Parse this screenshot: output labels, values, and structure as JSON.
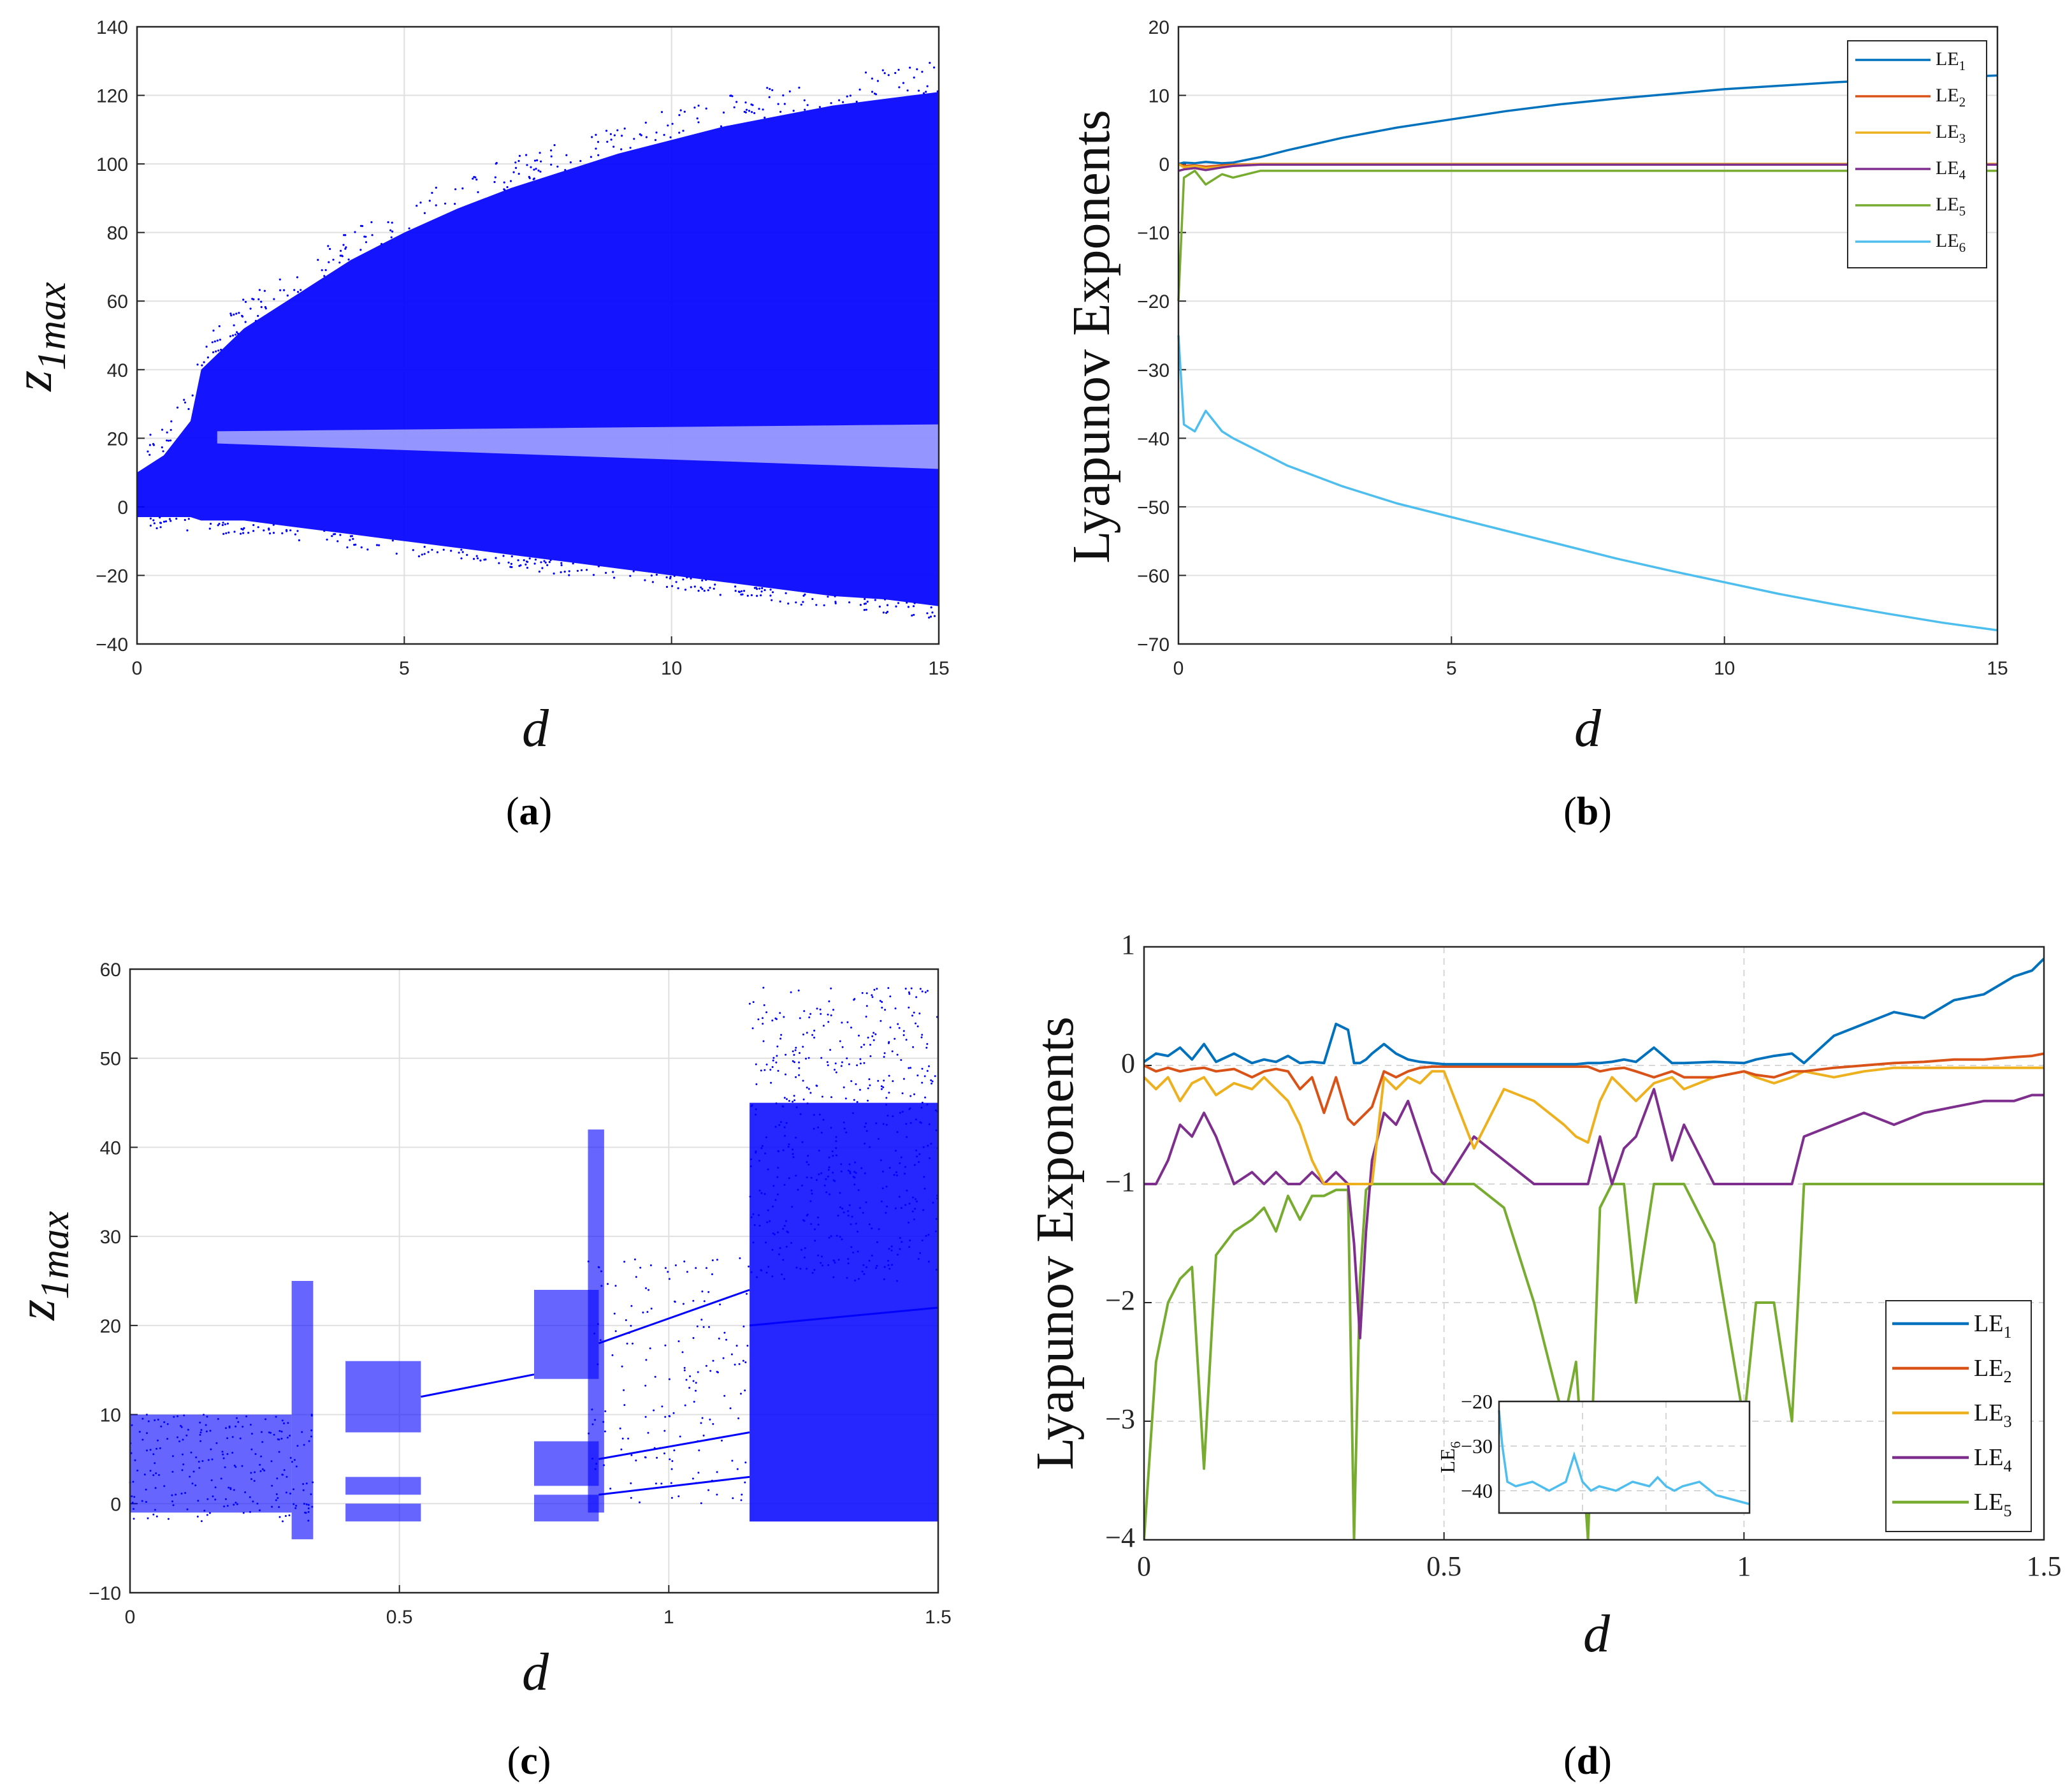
{
  "colors": {
    "scatter": "#0000ff",
    "LE1": "#0072bd",
    "LE2": "#d95319",
    "LE3": "#edb120",
    "LE4": "#7e2f8e",
    "LE5": "#77ac30",
    "LE6": "#4dbeee"
  },
  "chart_data": [
    {
      "id": "a",
      "type": "scatter",
      "panel_label": "a",
      "title": "",
      "xlabel": "d",
      "ylabel_base": "z",
      "ylabel_sub": "1max",
      "xlim": [
        0,
        15
      ],
      "ylim": [
        -40,
        140
      ],
      "xticks": [
        0,
        5,
        10,
        15
      ],
      "xtick_labels": [
        "0",
        "5",
        "10",
        "15"
      ],
      "yticks": [
        -40,
        -20,
        0,
        20,
        40,
        60,
        80,
        100,
        120,
        140
      ],
      "ytick_labels": [
        "−40",
        "−20",
        "0",
        "20",
        "40",
        "60",
        "80",
        "100",
        "120",
        "140"
      ],
      "grid": true,
      "envelope_x": [
        0,
        0.5,
        1,
        1.2,
        2,
        3,
        4,
        5,
        6,
        7,
        8,
        9,
        10,
        11,
        12,
        13,
        14,
        15
      ],
      "envelope_upper": [
        10,
        15,
        25,
        40,
        52,
        62,
        72,
        80,
        87,
        93,
        98,
        103,
        107,
        111,
        114,
        117,
        119,
        121
      ],
      "envelope_lower": [
        -3,
        -3,
        -3,
        -4,
        -4,
        -6,
        -8,
        -10,
        -12,
        -14,
        -16,
        -18,
        -20,
        -22,
        -24,
        -26,
        -27,
        -29
      ]
    },
    {
      "id": "b",
      "type": "line",
      "panel_label": "b",
      "title": "",
      "xlabel": "d",
      "ylabel": "Lyapunov Exponents",
      "xlim": [
        0,
        15
      ],
      "ylim": [
        -70,
        20
      ],
      "xticks": [
        0,
        5,
        10,
        15
      ],
      "xtick_labels": [
        "0",
        "5",
        "10",
        "15"
      ],
      "yticks": [
        -70,
        -60,
        -50,
        -40,
        -30,
        -20,
        -10,
        0,
        10,
        20
      ],
      "ytick_labels": [
        "−70",
        "−60",
        "−50",
        "−40",
        "−30",
        "−20",
        "−10",
        "0",
        "10",
        "20"
      ],
      "grid": true,
      "legend_position": "top-right",
      "x": [
        0,
        0.1,
        0.3,
        0.5,
        0.8,
        1.0,
        1.5,
        2,
        3,
        4,
        5,
        6,
        7,
        8,
        9,
        10,
        11,
        12,
        13,
        14,
        15
      ],
      "series": [
        {
          "name": "LE",
          "sub": "1",
          "color_key": "LE1",
          "values": [
            0,
            0.2,
            0.1,
            0.3,
            0.1,
            0.2,
            1.0,
            2.0,
            3.8,
            5.3,
            6.5,
            7.7,
            8.7,
            9.5,
            10.2,
            10.9,
            11.4,
            11.9,
            12.3,
            12.6,
            12.9
          ]
        },
        {
          "name": "LE",
          "sub": "2",
          "color_key": "LE2",
          "values": [
            0,
            -0.3,
            -0.2,
            -0.4,
            -0.2,
            -0.1,
            0,
            0,
            0,
            0,
            0,
            0,
            0,
            0,
            0,
            0,
            0,
            0,
            0,
            0,
            0
          ]
        },
        {
          "name": "LE",
          "sub": "3",
          "color_key": "LE3",
          "values": [
            0,
            -0.5,
            -0.3,
            -0.6,
            -0.4,
            -0.2,
            0,
            0,
            0,
            0,
            0,
            0,
            0,
            0,
            0,
            0,
            0,
            0,
            0,
            0,
            0
          ]
        },
        {
          "name": "LE",
          "sub": "4",
          "color_key": "LE4",
          "values": [
            -1,
            -0.8,
            -0.6,
            -0.9,
            -0.5,
            -0.3,
            -0.1,
            -0.1,
            -0.1,
            -0.1,
            -0.1,
            -0.1,
            -0.1,
            -0.1,
            -0.1,
            -0.1,
            -0.1,
            -0.1,
            -0.1,
            -0.1,
            -0.1
          ]
        },
        {
          "name": "LE",
          "sub": "5",
          "color_key": "LE5",
          "values": [
            -20,
            -2,
            -1,
            -3,
            -1.5,
            -2,
            -1,
            -1,
            -1,
            -1,
            -1,
            -1,
            -1,
            -1,
            -1,
            -1,
            -1,
            -1,
            -1,
            -1,
            -1
          ]
        },
        {
          "name": "LE",
          "sub": "6",
          "color_key": "LE6",
          "values": [
            -25,
            -38,
            -39,
            -36,
            -39,
            -40,
            -42,
            -44,
            -47,
            -49.5,
            -51.5,
            -53.5,
            -55.5,
            -57.5,
            -59.3,
            -61,
            -62.7,
            -64.2,
            -65.6,
            -66.9,
            -68
          ]
        }
      ]
    },
    {
      "id": "c",
      "type": "scatter",
      "panel_label": "c",
      "title": "",
      "xlabel": "d",
      "ylabel_base": "z",
      "ylabel_sub": "1max",
      "xlim": [
        0,
        1.5
      ],
      "ylim": [
        -10,
        60
      ],
      "xticks": [
        0,
        0.5,
        1,
        1.5
      ],
      "xtick_labels": [
        "0",
        "0.5",
        "1",
        "1.5"
      ],
      "yticks": [
        -10,
        0,
        10,
        20,
        30,
        40,
        50,
        60
      ],
      "ytick_labels": [
        "−10",
        "0",
        "10",
        "20",
        "30",
        "40",
        "50",
        "60"
      ],
      "grid": true,
      "bands": [
        {
          "x0": 0.0,
          "x1": 0.3,
          "y0": -1,
          "y1": 10
        },
        {
          "x0": 0.3,
          "x1": 0.34,
          "y0": -4,
          "y1": 25
        },
        {
          "x0": 0.4,
          "x1": 0.54,
          "y0": 8,
          "y1": 16
        },
        {
          "x0": 0.4,
          "x1": 0.54,
          "y0": 1,
          "y1": 3
        },
        {
          "x0": 0.4,
          "x1": 0.54,
          "y0": -2,
          "y1": 0
        },
        {
          "x0": 0.75,
          "x1": 0.87,
          "y0": 14,
          "y1": 24
        },
        {
          "x0": 0.75,
          "x1": 0.87,
          "y0": 2,
          "y1": 7
        },
        {
          "x0": 0.75,
          "x1": 0.87,
          "y0": -2,
          "y1": 1
        },
        {
          "x0": 0.85,
          "x1": 0.88,
          "y0": -1,
          "y1": 42
        },
        {
          "x0": 1.15,
          "x1": 1.5,
          "y0": -2,
          "y1": 45
        }
      ],
      "curves": [
        {
          "x": [
            0.54,
            0.75
          ],
          "y": [
            12,
            14.5
          ]
        },
        {
          "x": [
            0.87,
            1.15
          ],
          "y": [
            18,
            24
          ]
        },
        {
          "x": [
            0.87,
            1.15
          ],
          "y": [
            5,
            8
          ]
        },
        {
          "x": [
            0.87,
            1.15
          ],
          "y": [
            1,
            3
          ]
        },
        {
          "x": [
            1.15,
            1.5
          ],
          "y": [
            20,
            22
          ]
        }
      ]
    },
    {
      "id": "d",
      "type": "line",
      "panel_label": "d",
      "title": "",
      "xlabel": "d",
      "ylabel": "Lyapunov Exponents",
      "xlim": [
        0,
        1.5
      ],
      "ylim": [
        -4,
        1
      ],
      "xticks": [
        0,
        0.5,
        1,
        1.5
      ],
      "xtick_labels": [
        "0",
        "0.5",
        "1",
        "1.5"
      ],
      "yticks": [
        -4,
        -3,
        -2,
        -1,
        0,
        1
      ],
      "ytick_labels": [
        "−4",
        "−3",
        "−2",
        "−1",
        "0",
        "1"
      ],
      "grid": true,
      "legend_position": "bottom-right",
      "x": [
        0,
        0.02,
        0.04,
        0.06,
        0.08,
        0.1,
        0.12,
        0.15,
        0.18,
        0.2,
        0.22,
        0.24,
        0.26,
        0.28,
        0.3,
        0.32,
        0.34,
        0.35,
        0.36,
        0.37,
        0.38,
        0.4,
        0.42,
        0.44,
        0.46,
        0.48,
        0.5,
        0.55,
        0.6,
        0.65,
        0.7,
        0.72,
        0.74,
        0.76,
        0.78,
        0.8,
        0.82,
        0.85,
        0.88,
        0.9,
        0.95,
        1.0,
        1.02,
        1.05,
        1.08,
        1.1,
        1.15,
        1.2,
        1.25,
        1.3,
        1.35,
        1.4,
        1.45,
        1.48,
        1.5
      ],
      "series": [
        {
          "name": "LE",
          "sub": "1",
          "color_key": "LE1",
          "values": [
            0.03,
            0.1,
            0.08,
            0.15,
            0.05,
            0.18,
            0.03,
            0.1,
            0.02,
            0.05,
            0.03,
            0.08,
            0.02,
            0.03,
            0.02,
            0.35,
            0.3,
            0.02,
            0.02,
            0.05,
            0.1,
            0.18,
            0.1,
            0.05,
            0.03,
            0.02,
            0.01,
            0.01,
            0.01,
            0.01,
            0.01,
            0.01,
            0.02,
            0.02,
            0.03,
            0.05,
            0.03,
            0.15,
            0.02,
            0.02,
            0.03,
            0.02,
            0.05,
            0.08,
            0.1,
            0.02,
            0.25,
            0.35,
            0.45,
            0.4,
            0.55,
            0.6,
            0.75,
            0.8,
            0.9
          ]
        },
        {
          "name": "LE",
          "sub": "2",
          "color_key": "LE2",
          "values": [
            0,
            -0.05,
            -0.02,
            -0.05,
            -0.03,
            -0.02,
            -0.05,
            -0.03,
            -0.1,
            -0.05,
            -0.03,
            -0.05,
            -0.2,
            -0.1,
            -0.4,
            -0.1,
            -0.45,
            -0.5,
            -0.45,
            -0.4,
            -0.35,
            -0.05,
            -0.1,
            -0.05,
            -0.02,
            -0.01,
            -0.01,
            -0.01,
            -0.01,
            -0.01,
            -0.01,
            -0.01,
            -0.01,
            -0.05,
            -0.03,
            -0.02,
            -0.05,
            -0.1,
            -0.05,
            -0.1,
            -0.1,
            -0.05,
            -0.08,
            -0.1,
            -0.05,
            -0.05,
            -0.02,
            0,
            0.02,
            0.03,
            0.05,
            0.05,
            0.07,
            0.08,
            0.1
          ]
        },
        {
          "name": "LE",
          "sub": "3",
          "color_key": "LE3",
          "values": [
            -0.1,
            -0.2,
            -0.1,
            -0.3,
            -0.15,
            -0.1,
            -0.25,
            -0.15,
            -0.2,
            -0.1,
            -0.2,
            -0.3,
            -0.5,
            -0.8,
            -1,
            -1,
            -1,
            -1,
            -1,
            -1,
            -1,
            -0.1,
            -0.2,
            -0.1,
            -0.15,
            -0.05,
            -0.05,
            -0.7,
            -0.2,
            -0.3,
            -0.5,
            -0.6,
            -0.65,
            -0.3,
            -0.1,
            -0.2,
            -0.3,
            -0.15,
            -0.1,
            -0.2,
            -0.1,
            -0.05,
            -0.1,
            -0.15,
            -0.1,
            -0.05,
            -0.1,
            -0.05,
            -0.02,
            -0.02,
            -0.02,
            -0.02,
            -0.02,
            -0.02,
            -0.02
          ]
        },
        {
          "name": "LE",
          "sub": "4",
          "color_key": "LE4",
          "values": [
            -1,
            -1,
            -0.8,
            -0.5,
            -0.6,
            -0.4,
            -0.6,
            -1,
            -0.9,
            -1,
            -0.9,
            -1,
            -1,
            -0.9,
            -1,
            -0.9,
            -1,
            -1.5,
            -2.3,
            -1.4,
            -0.8,
            -0.4,
            -0.5,
            -0.3,
            -0.6,
            -0.9,
            -1,
            -0.6,
            -0.8,
            -1,
            -1,
            -1,
            -1,
            -0.6,
            -1,
            -0.7,
            -0.6,
            -0.2,
            -0.8,
            -0.5,
            -1,
            -1,
            -1,
            -1,
            -1,
            -0.6,
            -0.5,
            -0.4,
            -0.5,
            -0.4,
            -0.35,
            -0.3,
            -0.3,
            -0.25,
            -0.25
          ]
        },
        {
          "name": "LE",
          "sub": "5",
          "color_key": "LE5",
          "values": [
            -4,
            -2.5,
            -2,
            -1.8,
            -1.7,
            -3.4,
            -1.6,
            -1.4,
            -1.3,
            -1.2,
            -1.4,
            -1.1,
            -1.3,
            -1.1,
            -1.1,
            -1.05,
            -1.05,
            -4,
            -1.8,
            -1.05,
            -1,
            -1,
            -1,
            -1,
            -1,
            -1,
            -1,
            -1,
            -1.2,
            -2,
            -3,
            -2.5,
            -4,
            -1.2,
            -1,
            -1,
            -2,
            -1,
            -1,
            -1,
            -1.5,
            -3,
            -2,
            -2,
            -3,
            -1,
            -1,
            -1,
            -1,
            -1,
            -1,
            -1,
            -1,
            -1,
            -1
          ]
        }
      ],
      "inset": {
        "ylabel": "LE",
        "ylabel_sub": "6",
        "color_key": "LE6",
        "ylim": [
          -45,
          -20
        ],
        "yticks": [
          -40,
          -30,
          -20
        ],
        "ytick_labels": [
          "−40",
          "−30",
          "−20"
        ],
        "x": [
          0,
          0.02,
          0.05,
          0.1,
          0.2,
          0.3,
          0.4,
          0.45,
          0.5,
          0.55,
          0.6,
          0.7,
          0.8,
          0.9,
          0.95,
          1.0,
          1.05,
          1.1,
          1.2,
          1.3,
          1.4,
          1.5
        ],
        "values": [
          -22,
          -30,
          -38,
          -39,
          -38,
          -40,
          -38,
          -32,
          -38,
          -40,
          -39,
          -40,
          -38,
          -39,
          -37,
          -39,
          -40,
          -39,
          -38,
          -41,
          -42,
          -43
        ]
      }
    }
  ]
}
